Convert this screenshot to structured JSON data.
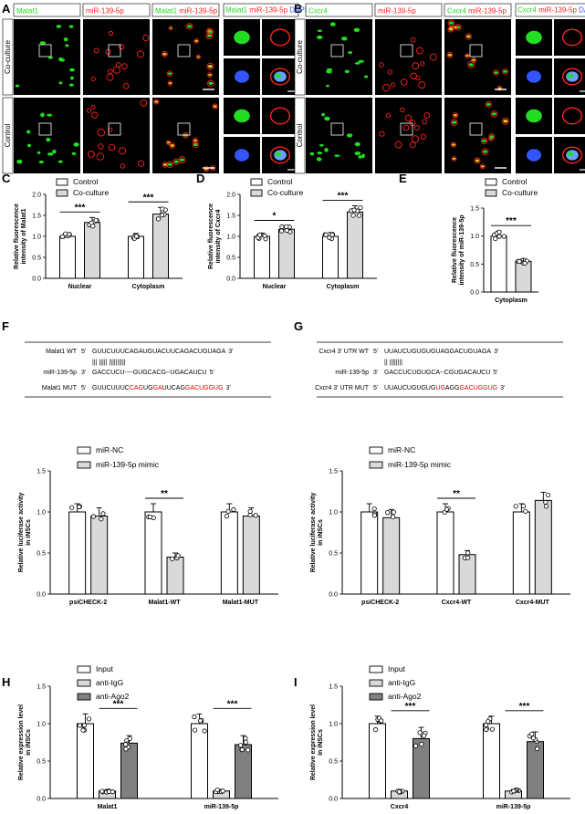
{
  "panels": {
    "A": {
      "letter": "A",
      "headers": [
        "Malat1",
        "miR-139-5p",
        "Malat1",
        "miR-139-5p",
        "Malat1",
        "miR-139-5p",
        "DAPI"
      ],
      "rows": [
        "Co-culture",
        "Control"
      ],
      "colors": {
        "green": "#22dd22",
        "red": "#ff2222",
        "blue": "#3355ff"
      }
    },
    "B": {
      "letter": "B",
      "headers": [
        "Cxcr4",
        "miR-139-5p",
        "Cxcr4",
        "miR-139-5p",
        "Cxcr4",
        "miR-139-5p",
        "DAPI"
      ],
      "rows": [
        "Co-culture",
        "Control"
      ]
    },
    "C": {
      "letter": "C"
    },
    "D": {
      "letter": "D"
    },
    "E": {
      "letter": "E"
    },
    "F": {
      "letter": "F",
      "seq": [
        {
          "label": "Malat1 WT",
          "prefix": "5'",
          "parts": [
            [
              "GUUCUUUCAGAUGUACUUCAGACUGUAGA",
              "#000"
            ]
          ],
          "suffix": "3'"
        },
        {
          "label": "",
          "prefix": "",
          "parts": [
            [
              "|||      ||||| ||||||||||",
              "#000"
            ]
          ],
          "suffix": ""
        },
        {
          "label": "miR-139-5p",
          "prefix": "3'",
          "parts": [
            [
              "GACCUCU----GUGCACG--UGACAUCU",
              "#000"
            ]
          ],
          "suffix": "5'"
        },
        {
          "label": "Malat1 MUT",
          "prefix": "5'",
          "parts": [
            [
              "GUUCUUUC",
              "#000"
            ],
            [
              "CAG",
              "#e60000"
            ],
            [
              "UG",
              "#000"
            ],
            [
              "GA",
              "#e60000"
            ],
            [
              "UUCAG",
              "#000"
            ],
            [
              "GACUGGUG",
              "#e60000"
            ]
          ],
          "suffix": "3'"
        }
      ]
    },
    "G": {
      "letter": "G",
      "seq": [
        {
          "label": "Cxcr4 3' UTR WT",
          "prefix": "5'",
          "parts": [
            [
              "UUAUCUGUGUGUAGGACUGUAGA",
              "#000"
            ]
          ],
          "suffix": "3'"
        },
        {
          "label": "",
          "prefix": "",
          "parts": [
            [
              "||       ||||||||",
              "#000"
            ]
          ],
          "suffix": ""
        },
        {
          "label": "miR-139-5p",
          "prefix": "3'",
          "parts": [
            [
              "GACCUCUGUGCA--CGUGACAUCU",
              "#000"
            ]
          ],
          "suffix": "5'"
        },
        {
          "label": "Cxcr4 3' UTR MUT",
          "prefix": "5'",
          "parts": [
            [
              "UUAUCUGUGUG",
              "#000"
            ],
            [
              "UG",
              "#e60000"
            ],
            [
              "AGG",
              "#000"
            ],
            [
              "GACUGGUG",
              "#e60000"
            ]
          ],
          "suffix": "3'"
        }
      ]
    },
    "H": {
      "letter": "H"
    },
    "I": {
      "letter": "I"
    }
  },
  "chart_data": [
    {
      "id": "C",
      "type": "bar",
      "categories": [
        "Nuclear",
        "Cytoplasm"
      ],
      "series": [
        {
          "name": "Control",
          "values": [
            1.0,
            1.0
          ],
          "errors": [
            0.08,
            0.07
          ]
        },
        {
          "name": "Co-culture",
          "values": [
            1.33,
            1.53
          ],
          "errors": [
            0.12,
            0.16
          ]
        }
      ],
      "ylabel": "Relative fluorescence intensity of Malat1",
      "ylim": [
        0,
        2.0
      ],
      "yticks": [
        "0.0",
        "0.5",
        "1.0",
        "1.5",
        "2.0"
      ],
      "significance": [
        "***",
        "***"
      ],
      "colors": [
        "#ffffff",
        "#d9d9d9"
      ],
      "legend": "top-left"
    },
    {
      "id": "D",
      "type": "bar",
      "categories": [
        "Nuclear",
        "Cytoplasm"
      ],
      "series": [
        {
          "name": "Control",
          "values": [
            1.0,
            1.0
          ],
          "errors": [
            0.08,
            0.09
          ]
        },
        {
          "name": "Co-culture",
          "values": [
            1.17,
            1.58
          ],
          "errors": [
            0.08,
            0.15
          ]
        }
      ],
      "ylabel": "Relative fluorescence intensity of Cxcr4",
      "ylim": [
        0,
        2.0
      ],
      "yticks": [
        "0.0",
        "0.5",
        "1.0",
        "1.5",
        "2.0"
      ],
      "significance": [
        "*",
        "***"
      ],
      "colors": [
        "#ffffff",
        "#d9d9d9"
      ],
      "legend": "top-left"
    },
    {
      "id": "E",
      "type": "bar",
      "categories": [
        "Cytoplasm"
      ],
      "series": [
        {
          "name": "Control",
          "values": [
            1.0
          ],
          "errors": [
            0.09
          ]
        },
        {
          "name": "Co-culture",
          "values": [
            0.55
          ],
          "errors": [
            0.05
          ]
        }
      ],
      "ylabel": "Relative fluorescence intensity of miR-139-5p",
      "ylim": [
        0,
        1.5
      ],
      "yticks": [
        "0.0",
        "0.5",
        "1.0",
        "1.5"
      ],
      "significance": [
        "***"
      ],
      "colors": [
        "#ffffff",
        "#d9d9d9"
      ],
      "legend": "top-left"
    },
    {
      "id": "F",
      "type": "bar",
      "categories": [
        "psiCHECK-2",
        "Malat1-WT",
        "Malat1-MUT"
      ],
      "series": [
        {
          "name": "miR-NC",
          "values": [
            1.0,
            1.0,
            1.0
          ],
          "errors": [
            0.1,
            0.1,
            0.1
          ]
        },
        {
          "name": "miR-139-5p mimic",
          "values": [
            0.95,
            0.45,
            0.95
          ],
          "errors": [
            0.1,
            0.05,
            0.1
          ]
        }
      ],
      "ylabel": "Relative luciferase activity in iNSCs",
      "ylim": [
        0,
        1.5
      ],
      "yticks": [
        "0.0",
        "0.5",
        "1.0",
        "1.5"
      ],
      "significance": [
        "",
        "**",
        ""
      ],
      "colors": [
        "#ffffff",
        "#d9d9d9"
      ],
      "legend": "top-left"
    },
    {
      "id": "G",
      "type": "bar",
      "categories": [
        "psiCHECK-2",
        "Cxcr4-WT",
        "Cxcr4-MUT"
      ],
      "series": [
        {
          "name": "miR-NC",
          "values": [
            1.0,
            1.0,
            1.0
          ],
          "errors": [
            0.1,
            0.1,
            0.1
          ]
        },
        {
          "name": "miR-139-5p mimic",
          "values": [
            0.93,
            0.48,
            1.14
          ],
          "errors": [
            0.1,
            0.05,
            0.1
          ]
        }
      ],
      "ylabel": "Relative luciferase activity in iNSCs",
      "ylim": [
        0,
        1.5
      ],
      "yticks": [
        "0.0",
        "0.5",
        "1.0",
        "1.5"
      ],
      "significance": [
        "",
        "**",
        ""
      ],
      "colors": [
        "#ffffff",
        "#d9d9d9"
      ],
      "legend": "top-left"
    },
    {
      "id": "H",
      "type": "bar",
      "categories": [
        "Malat1",
        "miR-139-5p"
      ],
      "series": [
        {
          "name": "Input",
          "values": [
            1.0,
            1.0
          ],
          "errors": [
            0.13,
            0.13
          ]
        },
        {
          "name": "anti-IgG",
          "values": [
            0.1,
            0.1
          ],
          "errors": [
            0.02,
            0.02
          ]
        },
        {
          "name": "anti-Ago2",
          "values": [
            0.74,
            0.72
          ],
          "errors": [
            0.1,
            0.12
          ]
        }
      ],
      "ylabel": "Relative expression level in iNSCs",
      "ylim": [
        0,
        1.5
      ],
      "yticks": [
        "0.0",
        "0.5",
        "1.0",
        "1.5"
      ],
      "significance": [
        "***",
        "***"
      ],
      "colors": [
        "#ffffff",
        "#d9d9d9",
        "#808080"
      ],
      "legend": "top-left"
    },
    {
      "id": "I",
      "type": "bar",
      "categories": [
        "Cxcr4",
        "miR-139-5p"
      ],
      "series": [
        {
          "name": "Input",
          "values": [
            1.0,
            1.0
          ],
          "errors": [
            0.1,
            0.1
          ]
        },
        {
          "name": "anti-IgG",
          "values": [
            0.1,
            0.1
          ],
          "errors": [
            0.02,
            0.02
          ]
        },
        {
          "name": "anti-Ago2",
          "values": [
            0.8,
            0.76
          ],
          "errors": [
            0.15,
            0.13
          ]
        }
      ],
      "ylabel": "Relative expression level in iNSCs",
      "ylim": [
        0,
        1.5
      ],
      "yticks": [
        "0.0",
        "0.5",
        "1.0",
        "1.5"
      ],
      "significance": [
        "***",
        "***"
      ],
      "colors": [
        "#ffffff",
        "#d9d9d9",
        "#808080"
      ],
      "legend": "top-left"
    }
  ]
}
